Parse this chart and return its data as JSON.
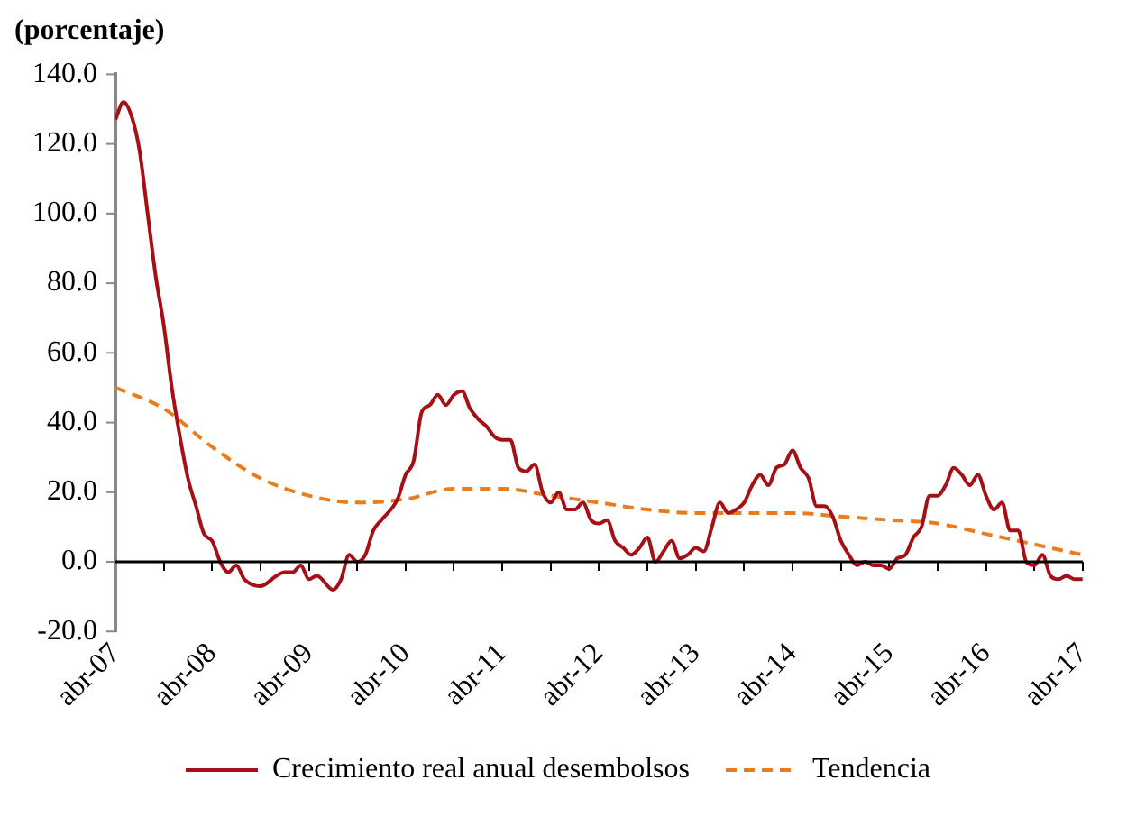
{
  "chart_data": {
    "type": "line",
    "ylabel": "(porcentaje)",
    "ylim": [
      -20,
      140
    ],
    "yticks": [
      {
        "value": -20,
        "label": "-20.0"
      },
      {
        "value": 0,
        "label": "0.0"
      },
      {
        "value": 20,
        "label": "20.0"
      },
      {
        "value": 40,
        "label": "40.0"
      },
      {
        "value": 60,
        "label": "60.0"
      },
      {
        "value": 80,
        "label": "80.0"
      },
      {
        "value": 100,
        "label": "100.0"
      },
      {
        "value": 120,
        "label": "120.0"
      },
      {
        "value": 140,
        "label": "140.0"
      }
    ],
    "xlim": [
      "2007-04",
      "2017-04"
    ],
    "xticks": [
      {
        "value": "2007-04",
        "label": "abr-07"
      },
      {
        "value": "2007-10",
        "label": null
      },
      {
        "value": "2008-04",
        "label": "abr-08"
      },
      {
        "value": "2008-10",
        "label": null
      },
      {
        "value": "2009-04",
        "label": "abr-09"
      },
      {
        "value": "2009-10",
        "label": null
      },
      {
        "value": "2010-04",
        "label": "abr-10"
      },
      {
        "value": "2010-10",
        "label": null
      },
      {
        "value": "2011-04",
        "label": "abr-11"
      },
      {
        "value": "2011-10",
        "label": null
      },
      {
        "value": "2012-04",
        "label": "abr-12"
      },
      {
        "value": "2012-10",
        "label": null
      },
      {
        "value": "2013-04",
        "label": "abr-13"
      },
      {
        "value": "2013-10",
        "label": null
      },
      {
        "value": "2014-04",
        "label": "abr-14"
      },
      {
        "value": "2014-10",
        "label": null
      },
      {
        "value": "2015-04",
        "label": "abr-15"
      },
      {
        "value": "2015-10",
        "label": null
      },
      {
        "value": "2016-04",
        "label": "abr-16"
      },
      {
        "value": "2016-10",
        "label": null
      },
      {
        "value": "2017-04",
        "label": "abr-17"
      }
    ],
    "legend": "bottom",
    "grid": false,
    "ref_lines": [
      {
        "axis": "y",
        "value": 0,
        "color": "#000000",
        "line_style": "solid"
      }
    ],
    "series": [
      {
        "name": "Crecimiento real anual desembolsos",
        "color": "#a50f15",
        "line_style": "solid",
        "x": [
          "2007-04",
          "2007-05",
          "2007-06",
          "2007-07",
          "2007-08",
          "2007-09",
          "2007-10",
          "2007-11",
          "2007-12",
          "2008-01",
          "2008-02",
          "2008-03",
          "2008-04",
          "2008-05",
          "2008-06",
          "2008-07",
          "2008-08",
          "2008-10",
          "2008-12",
          "2009-01",
          "2009-02",
          "2009-03",
          "2009-04",
          "2009-05",
          "2009-07",
          "2009-08",
          "2009-09",
          "2009-10",
          "2009-11",
          "2009-12",
          "2010-01",
          "2010-03",
          "2010-04",
          "2010-05",
          "2010-06",
          "2010-07",
          "2010-08",
          "2010-09",
          "2010-10",
          "2010-11",
          "2010-12",
          "2011-01",
          "2011-02",
          "2011-03",
          "2011-04",
          "2011-05",
          "2011-06",
          "2011-07",
          "2011-08",
          "2011-09",
          "2011-10",
          "2011-11",
          "2011-12",
          "2012-01",
          "2012-02",
          "2012-03",
          "2012-04",
          "2012-05",
          "2012-06",
          "2012-07",
          "2012-08",
          "2012-09",
          "2012-10",
          "2012-11",
          "2012-12",
          "2013-01",
          "2013-02",
          "2013-03",
          "2013-04",
          "2013-05",
          "2013-06",
          "2013-07",
          "2013-08",
          "2013-09",
          "2013-10",
          "2013-11",
          "2013-12",
          "2014-01",
          "2014-02",
          "2014-03",
          "2014-04",
          "2014-05",
          "2014-06",
          "2014-07",
          "2014-08",
          "2014-09",
          "2014-10",
          "2014-11",
          "2014-12",
          "2015-01",
          "2015-02",
          "2015-03",
          "2015-04",
          "2015-05",
          "2015-06",
          "2015-07",
          "2015-08",
          "2015-09",
          "2015-10",
          "2015-11",
          "2015-12",
          "2016-01",
          "2016-02",
          "2016-03",
          "2016-04",
          "2016-05",
          "2016-06",
          "2016-07",
          "2016-08",
          "2016-09",
          "2016-10",
          "2016-11",
          "2016-12",
          "2017-01",
          "2017-02",
          "2017-03",
          "2017-04"
        ],
        "values": [
          127,
          132,
          128,
          118,
          100,
          82,
          68,
          50,
          36,
          24,
          16,
          8,
          6,
          0,
          -3,
          -1,
          -5,
          -7,
          -4,
          -3,
          -3,
          -1,
          -5,
          -4,
          -8,
          -5,
          2,
          0,
          2,
          9,
          12,
          18,
          25,
          29,
          43,
          45,
          48,
          45,
          48,
          49,
          44,
          41,
          39,
          36,
          35,
          35,
          27,
          26,
          28,
          20,
          17,
          20,
          15,
          15,
          17,
          12,
          11,
          12,
          6,
          4,
          2,
          4,
          7,
          0,
          3,
          6,
          1,
          2,
          4,
          3,
          10,
          17,
          14,
          15,
          17,
          22,
          25,
          22,
          27,
          28,
          32,
          27,
          24,
          16,
          16,
          13,
          6,
          2,
          -1,
          0,
          -1,
          -1,
          -2,
          1,
          2,
          7,
          10,
          19,
          19,
          22,
          27,
          25,
          22,
          25,
          19,
          15,
          17,
          9,
          9,
          0,
          -1,
          2,
          -4,
          -5,
          -4,
          -5,
          -5
        ]
      },
      {
        "name": "Tendencia",
        "color": "#e97d1e",
        "line_style": "dashed",
        "x": [
          "2007-04",
          "2007-10",
          "2008-04",
          "2008-10",
          "2009-04",
          "2009-10",
          "2010-04",
          "2010-10",
          "2011-04",
          "2011-10",
          "2012-04",
          "2012-10",
          "2013-04",
          "2013-10",
          "2014-04",
          "2014-10",
          "2015-04",
          "2015-10",
          "2016-04",
          "2016-10",
          "2017-04"
        ],
        "values": [
          50,
          44,
          33,
          24,
          19,
          17,
          18,
          21,
          21,
          19,
          17,
          15,
          14,
          14,
          14,
          13,
          12,
          11,
          8,
          5,
          2
        ]
      }
    ]
  }
}
